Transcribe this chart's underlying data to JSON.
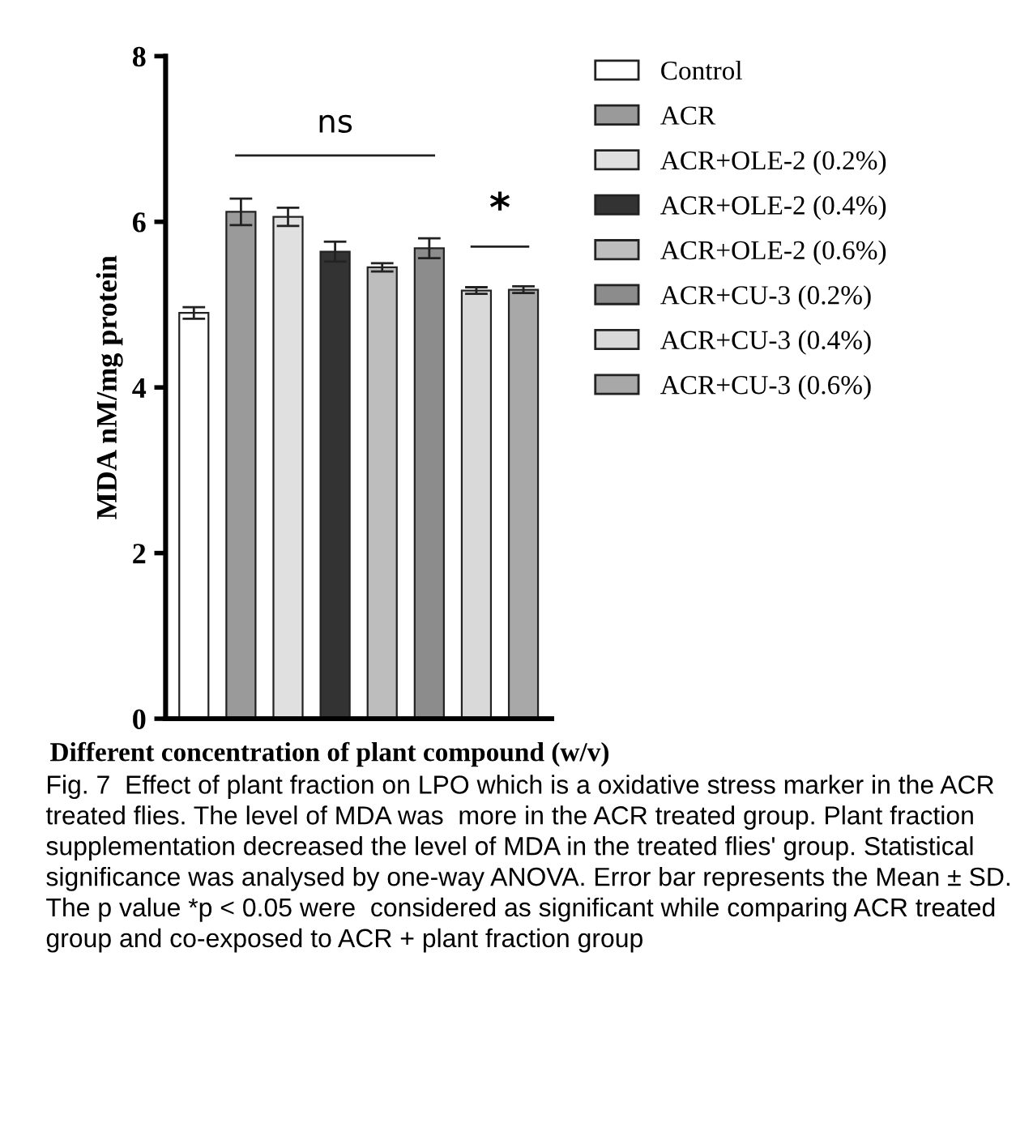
{
  "chart_data": {
    "type": "bar",
    "ylabel": "MDA nM/mg protein",
    "xlabel": "Different concentration of plant compound (w/v)",
    "categories": [
      null,
      null,
      null,
      null,
      null,
      null,
      null,
      null
    ],
    "stacked": true,
    "series": [
      {
        "name": "Control",
        "color": "#ffffff",
        "values": [
          4.9,
          null,
          null,
          null,
          null,
          null,
          null,
          null
        ],
        "errors": [
          0.07,
          null,
          null,
          null,
          null,
          null,
          null,
          null
        ]
      },
      {
        "name": "ACR",
        "color": "#9a9a9a",
        "values": [
          null,
          6.12,
          null,
          null,
          null,
          null,
          null,
          null
        ],
        "errors": [
          null,
          0.16,
          null,
          null,
          null,
          null,
          null,
          null
        ]
      },
      {
        "name": "ACR+OLE-2 (0.2%)",
        "color": "#e0e0e0",
        "values": [
          null,
          null,
          6.06,
          null,
          null,
          null,
          null,
          null
        ],
        "errors": [
          null,
          null,
          0.11,
          null,
          null,
          null,
          null,
          null
        ]
      },
      {
        "name": "ACR+OLE-2 (0.4%)",
        "color": "#333333",
        "values": [
          null,
          null,
          null,
          5.64,
          null,
          null,
          null,
          null
        ],
        "errors": [
          null,
          null,
          null,
          0.12,
          null,
          null,
          null,
          null
        ]
      },
      {
        "name": "ACR+OLE-2 (0.6%)",
        "color": "#bdbdbd",
        "values": [
          null,
          null,
          null,
          null,
          5.45,
          null,
          null,
          null
        ],
        "errors": [
          null,
          null,
          null,
          null,
          0.05,
          null,
          null,
          null
        ]
      },
      {
        "name": "ACR+CU-3 (0.2%)",
        "color": "#8c8c8c",
        "values": [
          null,
          null,
          null,
          null,
          null,
          5.68,
          null,
          null
        ],
        "errors": [
          null,
          null,
          null,
          null,
          null,
          0.12,
          null,
          null
        ]
      },
      {
        "name": "ACR+CU-3 (0.4%)",
        "color": "#d9d9d9",
        "values": [
          null,
          null,
          null,
          null,
          null,
          null,
          5.17,
          null
        ],
        "errors": [
          null,
          null,
          null,
          null,
          null,
          null,
          0.04,
          null
        ]
      },
      {
        "name": "ACR+CU-3 (0.6%)",
        "color": "#a8a8a8",
        "values": [
          null,
          null,
          null,
          null,
          null,
          null,
          null,
          5.18
        ],
        "errors": [
          null,
          null,
          null,
          null,
          null,
          null,
          null,
          0.04
        ]
      }
    ],
    "ylim": [
      0,
      8
    ],
    "yticks": [
      0,
      2,
      4,
      6,
      8
    ],
    "grid": false,
    "legend": "right",
    "annotations": [
      "ns",
      "*",
      "Fig. 7  Effect of plant fraction on LPO which is a oxidative stress marker in the ACR treated flies. The level of MDA was  more in the ACR treated group. Plant fraction supplementation decreased the level of MDA in the treated flies' group. Statistical significance was analysed by one-way ANOVA. Error bar represents the Mean ± SD. The p value *p < 0.05 were  considered as significant while comparing ACR treated group and co-exposed to ACR + plant fraction group"
    ]
  }
}
